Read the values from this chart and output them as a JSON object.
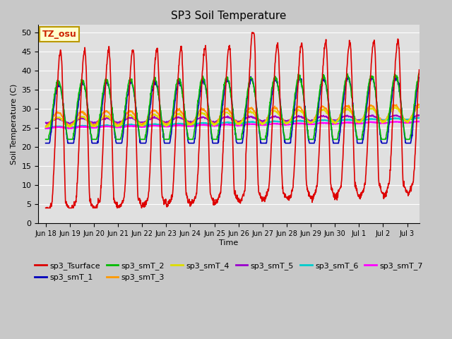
{
  "title": "SP3 Soil Temperature",
  "ylabel": "Soil Temperature (C)",
  "xlabel": "Time",
  "xlim_days": [
    -0.3,
    15.5
  ],
  "ylim": [
    0,
    52
  ],
  "yticks": [
    0,
    5,
    10,
    15,
    20,
    25,
    30,
    35,
    40,
    45,
    50
  ],
  "fig_bg_color": "#c8c8c8",
  "plot_bg_color": "#e0e0e0",
  "grid_color": "#ffffff",
  "annotation_text": "TZ_osu",
  "annotation_bg": "#ffffcc",
  "annotation_border": "#bb9900",
  "annotation_text_color": "#cc2200",
  "series_colors": {
    "sp3_Tsurface": "#dd0000",
    "sp3_smT_1": "#0000bb",
    "sp3_smT_2": "#00bb00",
    "sp3_smT_3": "#ff9900",
    "sp3_smT_4": "#dddd00",
    "sp3_smT_5": "#9900cc",
    "sp3_smT_6": "#00cccc",
    "sp3_smT_7": "#ff00ff"
  },
  "x_tick_labels": [
    "Jun 18",
    "Jun 19",
    "Jun 20",
    "Jun 21",
    "Jun 22",
    "Jun 23",
    "Jun 24",
    "Jun 25",
    "Jun 26",
    "Jun 27",
    "Jun 28",
    "Jun 29",
    "Jun 30",
    "Jul 1",
    "Jul 2",
    "Jul 3"
  ],
  "x_tick_positions": [
    0,
    1,
    2,
    3,
    4,
    5,
    6,
    7,
    8,
    9,
    10,
    11,
    12,
    13,
    14,
    15
  ]
}
